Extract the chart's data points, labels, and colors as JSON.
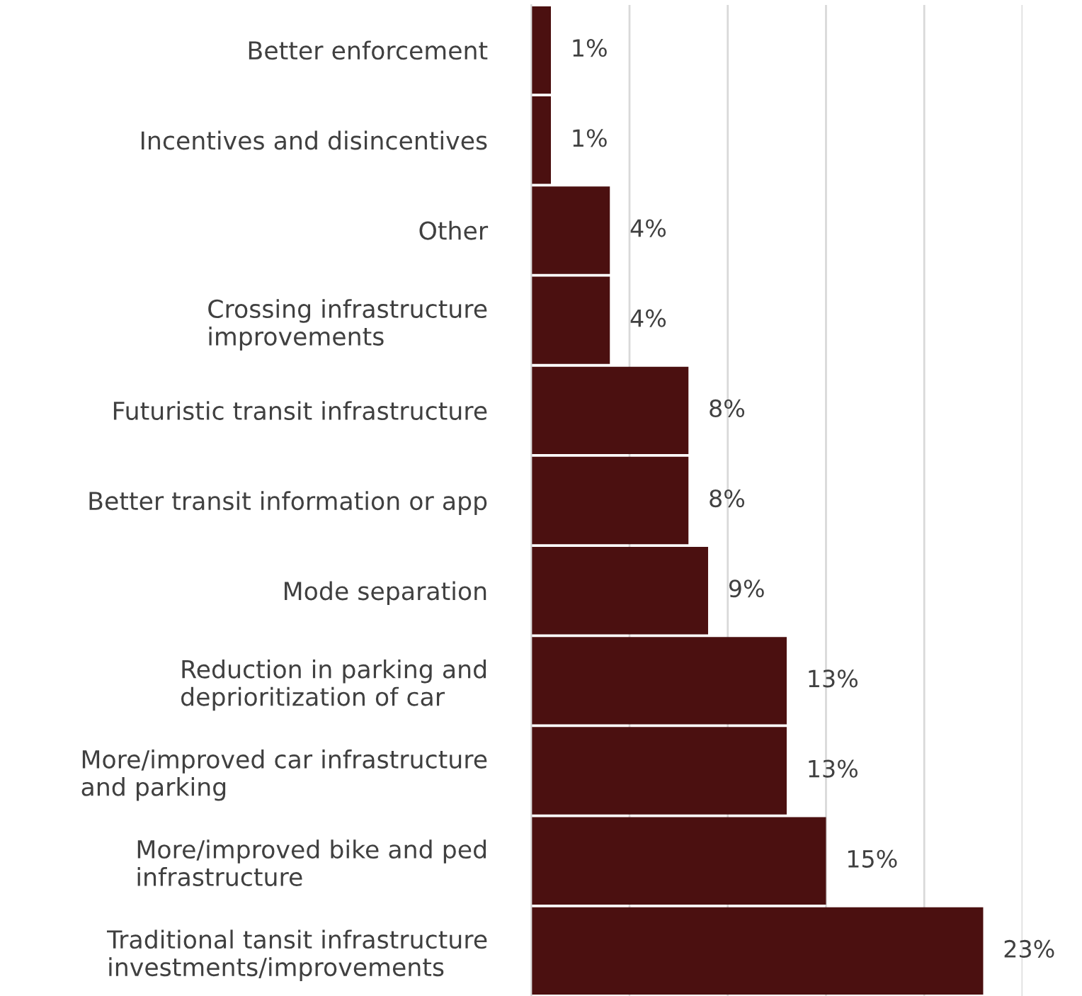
{
  "chart_data": {
    "type": "bar",
    "orientation": "horizontal",
    "categories": [
      "Better enforcement",
      "Incentives and disincentives",
      "Other",
      "Crossing infrastructure\nimprovements",
      "Futuristic transit infrastructure",
      "Better transit information or app",
      "Mode separation",
      "Reduction in parking and\ndeprioritization of car",
      "More/improved car infrastructure\nand parking",
      "More/improved bike and ped\ninfrastructure",
      "Traditional tansit infrastructure\ninvestments/improvements"
    ],
    "values": [
      1,
      1,
      4,
      4,
      8,
      8,
      9,
      13,
      13,
      15,
      23
    ],
    "value_labels": [
      "1%",
      "1%",
      "4%",
      "4%",
      "8%",
      "8%",
      "9%",
      "13%",
      "13%",
      "15%",
      "23%"
    ],
    "color": "#4b1010",
    "xlim": [
      0,
      25
    ],
    "xticks": [
      {
        "value": 0,
        "label": null
      },
      {
        "value": 5,
        "label": null
      },
      {
        "value": 10,
        "label": null
      },
      {
        "value": 15,
        "label": null
      },
      {
        "value": 20,
        "label": null
      },
      {
        "value": 25,
        "label": null
      }
    ],
    "grid": "x",
    "tick_labels": "y"
  }
}
